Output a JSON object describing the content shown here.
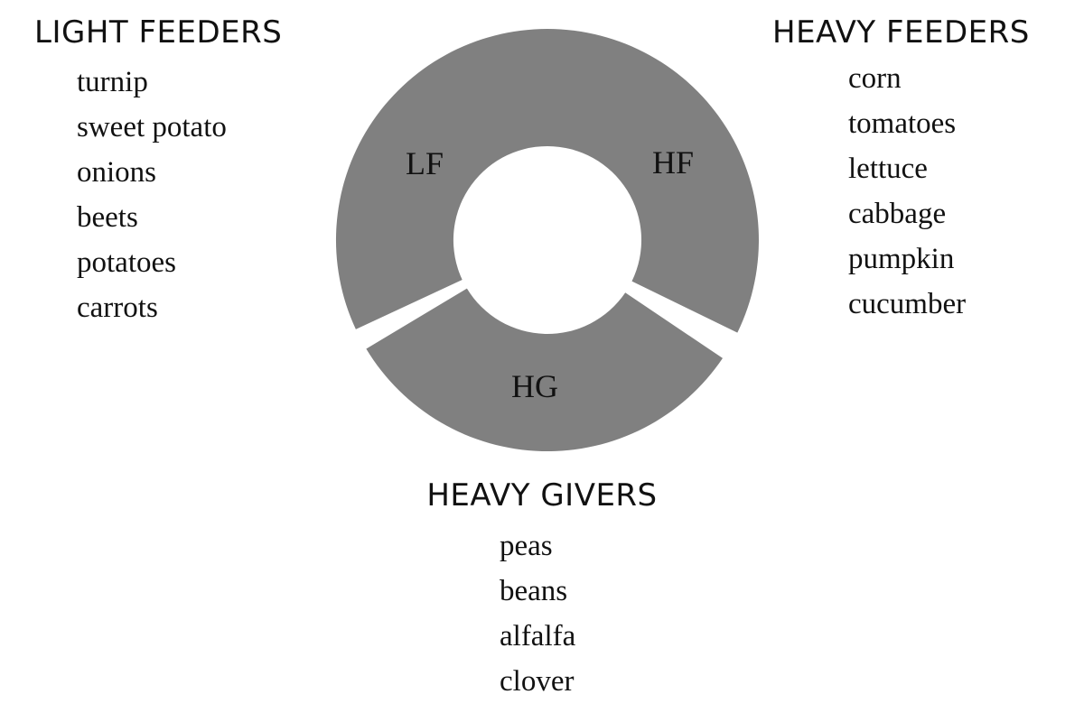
{
  "diagram": {
    "segments": [
      {
        "id": "HF",
        "label": "HF",
        "start_deg": 0,
        "end_deg": 116
      },
      {
        "id": "HG",
        "label": "HG",
        "start_deg": 124,
        "end_deg": 239
      },
      {
        "id": "LF",
        "label": "LF",
        "start_deg": 245,
        "end_deg": 360
      }
    ],
    "fill_color": "#808080"
  },
  "groups": {
    "light_feeders": {
      "title": "LIGHT FEEDERS",
      "items": [
        "turnip",
        "sweet potato",
        "onions",
        "beets",
        "potatoes",
        "carrots"
      ]
    },
    "heavy_feeders": {
      "title": "HEAVY FEEDERS",
      "items": [
        "corn",
        "tomatoes",
        "lettuce",
        "cabbage",
        "pumpkin",
        "cucumber"
      ]
    },
    "heavy_givers": {
      "title": "HEAVY GIVERS",
      "items": [
        "peas",
        "beans",
        "alfalfa",
        "clover"
      ]
    }
  }
}
